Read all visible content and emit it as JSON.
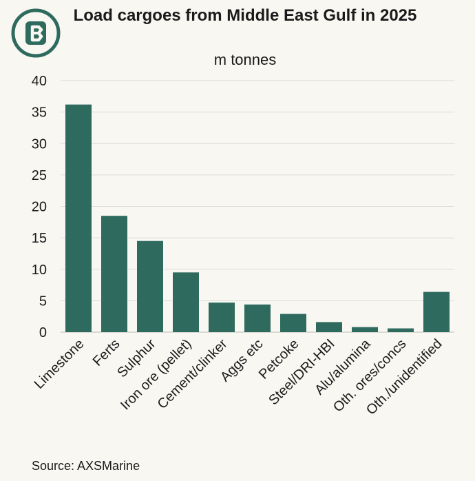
{
  "header": {
    "title": "Load cargoes from Middle East Gulf in 2025",
    "subtitle": "m tonnes",
    "brand_color": "#2e6b5e"
  },
  "footer": {
    "source": "Source: AXSMarine"
  },
  "chart_data": {
    "type": "bar",
    "title": "Load cargoes from Middle East Gulf in 2025",
    "subtitle": "m tonnes",
    "categories": [
      "Limestone",
      "Ferts",
      "Sulphur",
      "Iron ore (pellet)",
      "Cement/clinker",
      "Aggs etc",
      "Petcoke",
      "Steel/DRI-HBI",
      "Alu/alumina",
      "Oth. ores/concs",
      "Oth./unidentified"
    ],
    "values": [
      36.2,
      18.5,
      14.5,
      9.5,
      4.7,
      4.4,
      2.9,
      1.6,
      0.8,
      0.6,
      6.4
    ],
    "ylim": [
      0,
      40
    ],
    "yticks": [
      0,
      5,
      10,
      15,
      20,
      25,
      30,
      35,
      40
    ],
    "grid": true,
    "bar_color": "#2e6b5e"
  }
}
